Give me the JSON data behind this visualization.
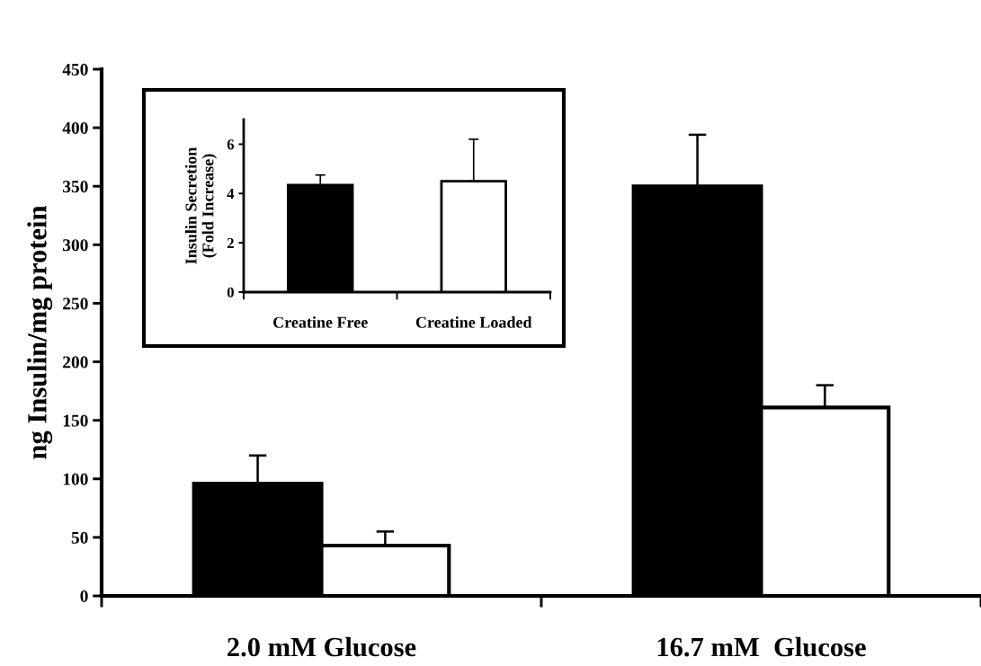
{
  "chart_data": [
    {
      "type": "bar",
      "ylabel": "ng Insulin/mg protein",
      "categories": [
        "2.0 mM Glucose",
        "16.7 mM  Glucose"
      ],
      "series": [
        {
          "color": "#000000",
          "values": [
            96,
            350
          ],
          "errors": [
            [
              96,
              120
            ],
            [
              350,
              394
            ]
          ]
        },
        {
          "color": "#ffffff",
          "values": [
            43,
            161
          ],
          "errors": [
            [
              43,
              55
            ],
            [
              161,
              180
            ]
          ]
        }
      ],
      "ylim": [
        0,
        450
      ],
      "yticks": [
        0,
        50,
        100,
        150,
        200,
        250,
        300,
        350,
        400,
        450
      ],
      "grid": false,
      "legend": false
    },
    {
      "type": "bar",
      "ylabel": "Insulin Secretion\n(Fold Increase)",
      "categories": [
        "Creatine Free",
        "Creatine Loaded"
      ],
      "values": [
        4.34,
        4.5
      ],
      "colors": [
        "#000000",
        "#ffffff"
      ],
      "errors": [
        [
          4.34,
          4.75
        ],
        [
          4.5,
          6.2
        ]
      ],
      "ylim": [
        0,
        7
      ],
      "yticks": [
        0,
        2,
        4,
        6
      ],
      "grid": false,
      "legend": false
    }
  ]
}
